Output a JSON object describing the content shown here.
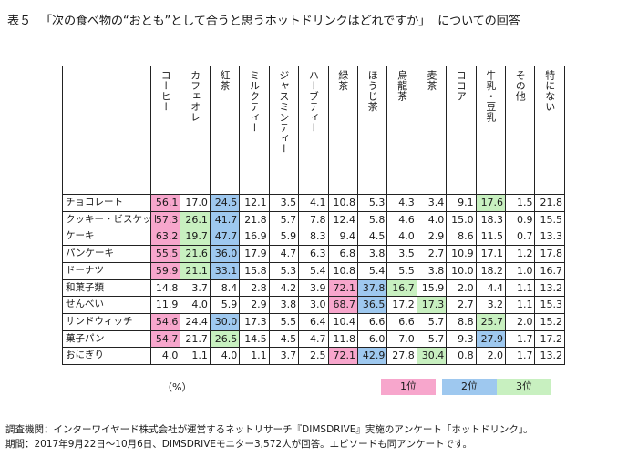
{
  "title": {
    "table_no": "表５",
    "question": "「次の食べ物の“おとも”として合うと思うホットドリンクはどれですか」",
    "suffix": "についての回答"
  },
  "columns": [
    "コーヒー",
    "カフェオレ",
    "紅茶",
    "ミルクティー",
    "ジャスミンティー",
    "ハーブティー",
    "緑茶",
    "ほうじ茶",
    "烏龍茶",
    "麦茶",
    "ココア",
    "牛乳・豆乳",
    "その他",
    "特にない"
  ],
  "rows": [
    {
      "label": "チョコレート",
      "values": [
        "56.1",
        "17.0",
        "24.5",
        "12.1",
        "3.5",
        "4.1",
        "10.8",
        "5.3",
        "4.3",
        "3.4",
        "9.1",
        "17.6",
        "1.5",
        "21.8"
      ],
      "ranks": [
        1,
        0,
        2,
        0,
        0,
        0,
        0,
        0,
        0,
        0,
        0,
        3,
        0,
        0
      ]
    },
    {
      "label": "クッキー・ビスケット",
      "values": [
        "57.3",
        "26.1",
        "41.7",
        "21.8",
        "5.7",
        "7.8",
        "12.4",
        "5.8",
        "4.6",
        "4.0",
        "15.0",
        "18.3",
        "0.9",
        "15.5"
      ],
      "ranks": [
        1,
        3,
        2,
        0,
        0,
        0,
        0,
        0,
        0,
        0,
        0,
        0,
        0,
        0
      ]
    },
    {
      "label": "ケーキ",
      "values": [
        "63.2",
        "19.7",
        "47.7",
        "16.9",
        "5.9",
        "8.3",
        "9.4",
        "4.5",
        "4.0",
        "2.9",
        "8.6",
        "11.5",
        "0.7",
        "13.3"
      ],
      "ranks": [
        1,
        3,
        2,
        0,
        0,
        0,
        0,
        0,
        0,
        0,
        0,
        0,
        0,
        0
      ]
    },
    {
      "label": "パンケーキ",
      "values": [
        "55.5",
        "21.6",
        "36.0",
        "17.9",
        "4.7",
        "6.3",
        "6.8",
        "3.8",
        "3.5",
        "2.7",
        "10.9",
        "17.1",
        "1.2",
        "17.8"
      ],
      "ranks": [
        1,
        3,
        2,
        0,
        0,
        0,
        0,
        0,
        0,
        0,
        0,
        0,
        0,
        0
      ]
    },
    {
      "label": "ドーナツ",
      "values": [
        "59.9",
        "21.1",
        "33.1",
        "15.8",
        "5.3",
        "5.4",
        "10.8",
        "5.4",
        "5.5",
        "3.8",
        "10.0",
        "18.2",
        "1.0",
        "16.7"
      ],
      "ranks": [
        1,
        3,
        2,
        0,
        0,
        0,
        0,
        0,
        0,
        0,
        0,
        0,
        0,
        0
      ]
    },
    {
      "label": "和菓子類",
      "values": [
        "14.8",
        "3.7",
        "8.4",
        "2.8",
        "4.2",
        "3.9",
        "72.1",
        "37.8",
        "16.7",
        "15.9",
        "2.0",
        "4.4",
        "1.1",
        "13.2"
      ],
      "ranks": [
        0,
        0,
        0,
        0,
        0,
        0,
        1,
        2,
        3,
        0,
        0,
        0,
        0,
        0
      ]
    },
    {
      "label": "せんべい",
      "values": [
        "11.9",
        "4.0",
        "5.9",
        "2.9",
        "3.8",
        "3.0",
        "68.7",
        "36.5",
        "17.2",
        "17.3",
        "2.7",
        "3.2",
        "1.1",
        "15.3"
      ],
      "ranks": [
        0,
        0,
        0,
        0,
        0,
        0,
        1,
        2,
        0,
        3,
        0,
        0,
        0,
        0
      ]
    },
    {
      "label": "サンドウィッチ",
      "values": [
        "54.6",
        "24.4",
        "30.0",
        "17.3",
        "5.5",
        "6.4",
        "10.4",
        "6.6",
        "6.6",
        "5.7",
        "8.8",
        "25.7",
        "2.0",
        "15.2"
      ],
      "ranks": [
        1,
        0,
        2,
        0,
        0,
        0,
        0,
        0,
        0,
        0,
        0,
        3,
        0,
        0
      ]
    },
    {
      "label": "菓子パン",
      "values": [
        "54.7",
        "21.7",
        "26.5",
        "14.5",
        "4.5",
        "4.7",
        "11.8",
        "6.0",
        "7.0",
        "5.7",
        "9.3",
        "27.9",
        "1.7",
        "17.2"
      ],
      "ranks": [
        1,
        0,
        3,
        0,
        0,
        0,
        0,
        0,
        0,
        0,
        0,
        2,
        0,
        0
      ]
    },
    {
      "label": "おにぎり",
      "values": [
        "4.0",
        "1.1",
        "4.0",
        "1.1",
        "3.7",
        "2.5",
        "72.1",
        "42.9",
        "27.8",
        "30.4",
        "0.8",
        "2.0",
        "1.7",
        "13.2"
      ],
      "ranks": [
        0,
        0,
        0,
        0,
        0,
        0,
        1,
        2,
        0,
        3,
        0,
        0,
        0,
        0
      ]
    }
  ],
  "unit": "（%）",
  "legend": {
    "rank1": "1位",
    "rank2": "2位",
    "rank3": "3位"
  },
  "colors": {
    "rank1": "#f7a6cc",
    "rank2": "#9ec8ef",
    "rank3": "#c8f0c0"
  },
  "footer": {
    "line1": "調査機関：インターワイヤード株式会社が運営するネットリサーチ『DIMSDRIVE』実施のアンケート「ホットドリンク」。",
    "line2": "期間：2017年9月22日～10月6日、DIMSDRIVEモニター3,572人が回答。エピソードも同アンケートです。"
  }
}
